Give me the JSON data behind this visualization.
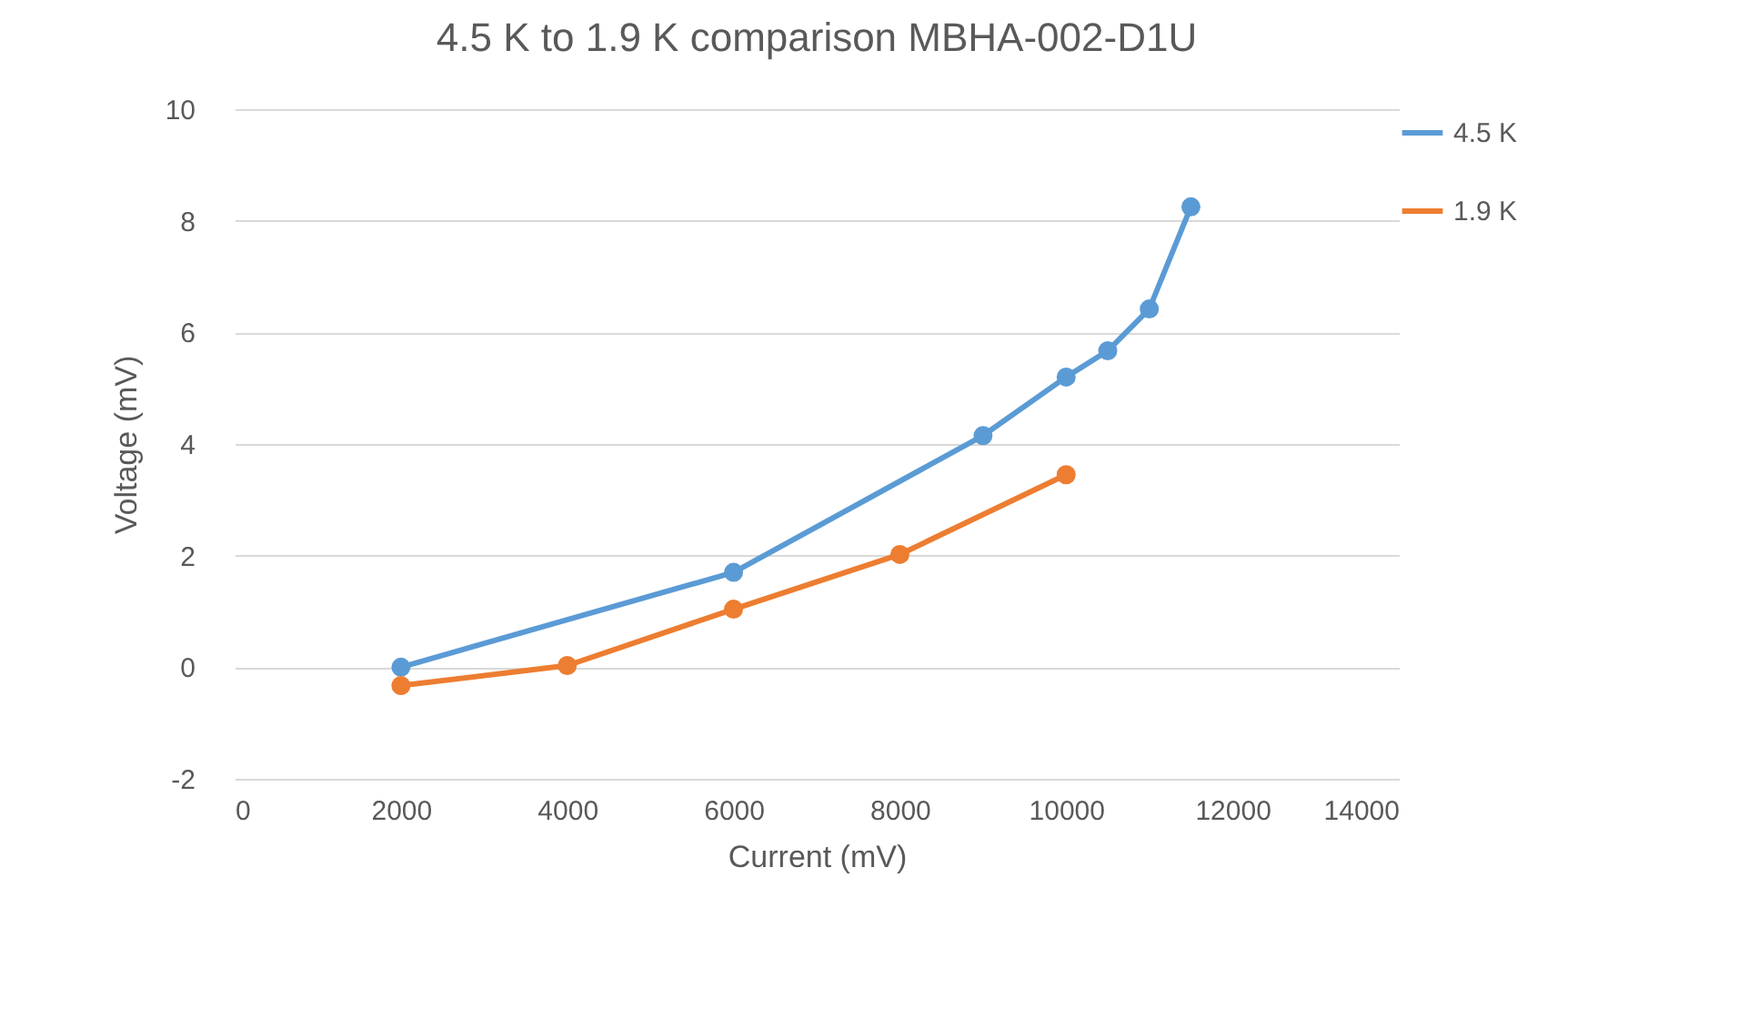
{
  "chart_data": {
    "type": "line",
    "title": "4.5 K to 1.9 K comparison MBHA-002-D1U",
    "xlabel": "Current (mV)",
    "ylabel": "Voltage (mV)",
    "series": [
      {
        "name": "4.5 K",
        "color": "#5b9bd5",
        "x": [
          2000,
          6000,
          9000,
          10000,
          10500,
          11000,
          11500
        ],
        "values": [
          0,
          1.7,
          4.15,
          5.2,
          5.67,
          6.42,
          8.25
        ]
      },
      {
        "name": "1.9 K",
        "color": "#ed7d31",
        "x": [
          2000,
          4000,
          6000,
          8000,
          10000
        ],
        "values": [
          -0.33,
          0.03,
          1.04,
          2.02,
          3.45
        ]
      }
    ],
    "xlim": [
      0,
      14000
    ],
    "xticks": [
      0,
      2000,
      4000,
      6000,
      8000,
      10000,
      12000,
      14000
    ],
    "ylim": [
      -2,
      10
    ],
    "yticks": [
      -2,
      0,
      2,
      4,
      6,
      8,
      10
    ],
    "grid": "y",
    "legend": "right",
    "marker": "circle",
    "line_style": "solid"
  }
}
